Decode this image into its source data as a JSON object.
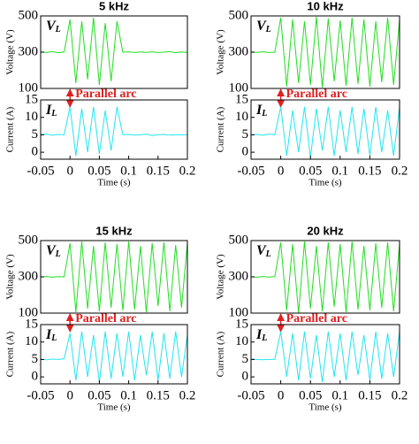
{
  "chart_data": [
    {
      "type": "line",
      "title": "5 kHz",
      "ylabel": "Voltage (V)",
      "signal_label": "V",
      "signal_subscript": "L",
      "annotation": "Parallel arc",
      "x": [
        -0.05,
        -0.04,
        -0.03,
        -0.02,
        -0.01,
        0,
        0.01,
        0.02,
        0.03,
        0.04,
        0.05,
        0.06,
        0.07,
        0.08,
        0.09,
        0.1,
        0.11,
        0.12,
        0.13,
        0.14,
        0.15,
        0.16,
        0.17,
        0.18,
        0.19,
        0.2
      ],
      "series": [
        {
          "color": "#22dd22",
          "values": [
            302,
            298,
            303,
            297,
            301,
            480,
            130,
            470,
            150,
            490,
            120,
            460,
            140,
            470,
            300,
            302,
            298,
            301,
            299,
            302,
            298,
            300,
            303,
            297,
            301,
            299
          ]
        }
      ],
      "xlim": [
        -0.05,
        0.2
      ],
      "ylim": [
        100,
        500
      ],
      "yticks": [
        100,
        300,
        500
      ]
    },
    {
      "type": "line",
      "ylabel": "Current (A)",
      "xlabel": "Time (s)",
      "signal_label": "I",
      "signal_subscript": "L",
      "x": [
        -0.05,
        -0.04,
        -0.03,
        -0.02,
        -0.01,
        0,
        0.01,
        0.02,
        0.03,
        0.04,
        0.05,
        0.06,
        0.07,
        0.08,
        0.09,
        0.1,
        0.11,
        0.12,
        0.13,
        0.14,
        0.15,
        0.16,
        0.17,
        0.18,
        0.19,
        0.2
      ],
      "series": [
        {
          "color": "#22e5f0",
          "values": [
            5,
            5.2,
            4.9,
            5.1,
            5,
            13,
            -1,
            12.5,
            0,
            13,
            -0.5,
            12,
            0.5,
            13,
            5,
            5.1,
            4.9,
            5,
            5.2,
            4.8,
            5,
            5.1,
            4.9,
            5,
            5,
            5
          ]
        }
      ],
      "xlim": [
        -0.05,
        0.2
      ],
      "ylim": [
        -2,
        15
      ],
      "yticks": [
        0,
        5,
        10,
        15
      ],
      "xticks": [
        -0.05,
        0,
        0.05,
        0.1,
        0.15,
        0.2
      ]
    },
    {
      "type": "line",
      "title": "10 kHz",
      "ylabel": "Voltage (V)",
      "signal_label": "V",
      "signal_subscript": "L",
      "annotation": "Parallel arc",
      "x": [
        -0.05,
        -0.04,
        -0.03,
        -0.02,
        -0.01,
        0,
        0.01,
        0.02,
        0.03,
        0.04,
        0.05,
        0.06,
        0.07,
        0.08,
        0.09,
        0.1,
        0.11,
        0.12,
        0.13,
        0.14,
        0.15,
        0.16,
        0.17,
        0.18,
        0.19,
        0.2
      ],
      "series": [
        {
          "color": "#22dd22",
          "values": [
            301,
            299,
            302,
            298,
            300,
            490,
            110,
            480,
            130,
            470,
            120,
            495,
            105,
            485,
            140,
            475,
            115,
            490,
            125,
            480,
            110,
            470,
            135,
            490,
            120,
            480
          ]
        }
      ],
      "xlim": [
        -0.05,
        0.2
      ],
      "ylim": [
        100,
        500
      ],
      "yticks": [
        100,
        300,
        500
      ]
    },
    {
      "type": "line",
      "ylabel": "Current (A)",
      "xlabel": "Time (s)",
      "signal_label": "I",
      "signal_subscript": "L",
      "x": [
        -0.05,
        -0.04,
        -0.03,
        -0.02,
        -0.01,
        0,
        0.01,
        0.02,
        0.03,
        0.04,
        0.05,
        0.06,
        0.07,
        0.08,
        0.09,
        0.1,
        0.11,
        0.12,
        0.13,
        0.14,
        0.15,
        0.16,
        0.17,
        0.18,
        0.19,
        0.2
      ],
      "series": [
        {
          "color": "#22e5f0",
          "values": [
            5,
            5.1,
            4.9,
            5.2,
            5,
            13,
            -1,
            12,
            0,
            13,
            -1.5,
            12.5,
            0.5,
            13,
            -1,
            12,
            0,
            13,
            -0.5,
            12.5,
            -1,
            13,
            0,
            12,
            -1,
            13
          ]
        }
      ],
      "xlim": [
        -0.05,
        0.2
      ],
      "ylim": [
        -2,
        15
      ],
      "yticks": [
        0,
        5,
        10,
        15
      ],
      "xticks": [
        -0.05,
        0,
        0.05,
        0.1,
        0.15,
        0.2
      ]
    },
    {
      "type": "line",
      "title": "15 kHz",
      "ylabel": "Voltage (V)",
      "signal_label": "V",
      "signal_subscript": "L",
      "annotation": "Parallel arc",
      "x": [
        -0.05,
        -0.04,
        -0.03,
        -0.02,
        -0.01,
        0,
        0.01,
        0.02,
        0.03,
        0.04,
        0.05,
        0.06,
        0.07,
        0.08,
        0.09,
        0.1,
        0.11,
        0.12,
        0.13,
        0.14,
        0.15,
        0.16,
        0.17,
        0.18,
        0.19,
        0.2
      ],
      "series": [
        {
          "color": "#22dd22",
          "values": [
            299,
            302,
            298,
            301,
            300,
            485,
            105,
            495,
            125,
            470,
            110,
            490,
            130,
            480,
            115,
            495,
            120,
            470,
            105,
            485,
            140,
            490,
            110,
            475,
            130,
            490
          ]
        }
      ],
      "xlim": [
        -0.05,
        0.2
      ],
      "ylim": [
        100,
        500
      ],
      "yticks": [
        100,
        300,
        500
      ]
    },
    {
      "type": "line",
      "ylabel": "Current (A)",
      "xlabel": "Time (s)",
      "signal_label": "I",
      "signal_subscript": "L",
      "x": [
        -0.05,
        -0.04,
        -0.03,
        -0.02,
        -0.01,
        0,
        0.01,
        0.02,
        0.03,
        0.04,
        0.05,
        0.06,
        0.07,
        0.08,
        0.09,
        0.1,
        0.11,
        0.12,
        0.13,
        0.14,
        0.15,
        0.16,
        0.17,
        0.18,
        0.19,
        0.2
      ],
      "series": [
        {
          "color": "#22e5f0",
          "values": [
            5,
            4.9,
            5.1,
            5,
            5.2,
            12.5,
            -1,
            13,
            0,
            12,
            -1.5,
            13,
            -0.5,
            12.5,
            0,
            13,
            -1,
            12,
            0.5,
            13,
            -1,
            12.5,
            -0.5,
            13,
            0,
            12
          ]
        }
      ],
      "xlim": [
        -0.05,
        0.2
      ],
      "ylim": [
        -2,
        15
      ],
      "yticks": [
        0,
        5,
        10,
        15
      ],
      "xticks": [
        -0.05,
        0,
        0.05,
        0.1,
        0.15,
        0.2
      ]
    },
    {
      "type": "line",
      "title": "20 kHz",
      "ylabel": "Voltage (V)",
      "signal_label": "V",
      "signal_subscript": "L",
      "annotation": "Parallel arc",
      "x": [
        -0.05,
        -0.04,
        -0.03,
        -0.02,
        -0.01,
        0,
        0.01,
        0.02,
        0.03,
        0.04,
        0.05,
        0.06,
        0.07,
        0.08,
        0.09,
        0.1,
        0.11,
        0.12,
        0.13,
        0.14,
        0.15,
        0.16,
        0.17,
        0.18,
        0.19,
        0.2
      ],
      "series": [
        {
          "color": "#22dd22",
          "values": [
            300,
            298,
            302,
            299,
            301,
            490,
            115,
            480,
            100,
            495,
            125,
            470,
            110,
            490,
            135,
            480,
            105,
            495,
            120,
            470,
            115,
            485,
            130,
            490,
            110,
            480
          ]
        }
      ],
      "xlim": [
        -0.05,
        0.2
      ],
      "ylim": [
        100,
        500
      ],
      "yticks": [
        100,
        300,
        500
      ]
    },
    {
      "type": "line",
      "ylabel": "Current (A)",
      "xlabel": "Time (s)",
      "signal_label": "I",
      "signal_subscript": "L",
      "x": [
        -0.05,
        -0.04,
        -0.03,
        -0.02,
        -0.01,
        0,
        0.01,
        0.02,
        0.03,
        0.04,
        0.05,
        0.06,
        0.07,
        0.08,
        0.09,
        0.1,
        0.11,
        0.12,
        0.13,
        0.14,
        0.15,
        0.16,
        0.17,
        0.18,
        0.19,
        0.2
      ],
      "series": [
        {
          "color": "#22e5f0",
          "values": [
            5.1,
            5,
            4.9,
            5,
            5,
            13,
            0,
            12.5,
            -1,
            13,
            -0.5,
            12,
            -1.5,
            13,
            0,
            12.5,
            -1,
            13,
            0.5,
            12,
            -1,
            13,
            -0.5,
            12.5,
            0,
            13
          ]
        }
      ],
      "xlim": [
        -0.05,
        0.2
      ],
      "ylim": [
        -2,
        15
      ],
      "yticks": [
        0,
        5,
        10,
        15
      ],
      "xticks": [
        -0.05,
        0,
        0.05,
        0.1,
        0.15,
        0.2
      ]
    }
  ]
}
